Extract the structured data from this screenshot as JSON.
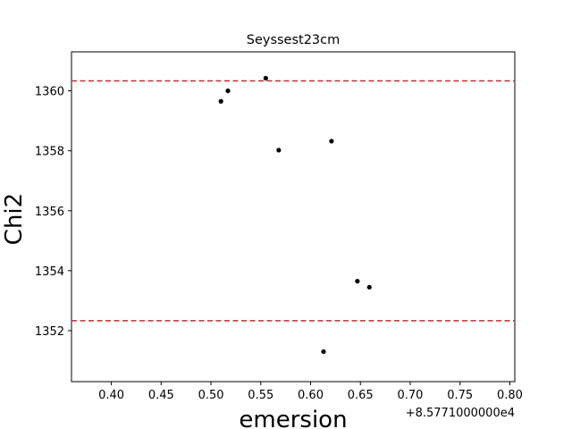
{
  "chart_data": {
    "type": "scatter",
    "title": "Seyssest23cm",
    "xlabel": "emersion",
    "ylabel": "Chi2",
    "x_offset_label": "+8.5771000000e4",
    "xlim": [
      0.36,
      0.805
    ],
    "ylim": [
      1350.3,
      1361.3
    ],
    "x_ticks": [
      0.4,
      0.45,
      0.5,
      0.55,
      0.6,
      0.65,
      0.7,
      0.75,
      0.8
    ],
    "x_tick_labels": [
      "0.40",
      "0.45",
      "0.50",
      "0.55",
      "0.60",
      "0.65",
      "0.70",
      "0.75",
      "0.80"
    ],
    "y_ticks": [
      1352,
      1354,
      1356,
      1358,
      1360
    ],
    "y_tick_labels": [
      "1352",
      "1354",
      "1356",
      "1358",
      "1360"
    ],
    "grid": false,
    "points": [
      {
        "x": 0.51,
        "y": 1359.65
      },
      {
        "x": 0.517,
        "y": 1360.0
      },
      {
        "x": 0.555,
        "y": 1360.42
      },
      {
        "x": 0.568,
        "y": 1358.02
      },
      {
        "x": 0.621,
        "y": 1358.32
      },
      {
        "x": 0.647,
        "y": 1353.65
      },
      {
        "x": 0.659,
        "y": 1353.45
      },
      {
        "x": 0.613,
        "y": 1351.3
      }
    ],
    "hlines": [
      {
        "y": 1360.33,
        "color": "#d62728",
        "style": "dashed"
      },
      {
        "y": 1352.33,
        "color": "#d62728",
        "style": "dashed"
      }
    ],
    "point_color": "#000000",
    "line_color": "#e41a1c"
  }
}
